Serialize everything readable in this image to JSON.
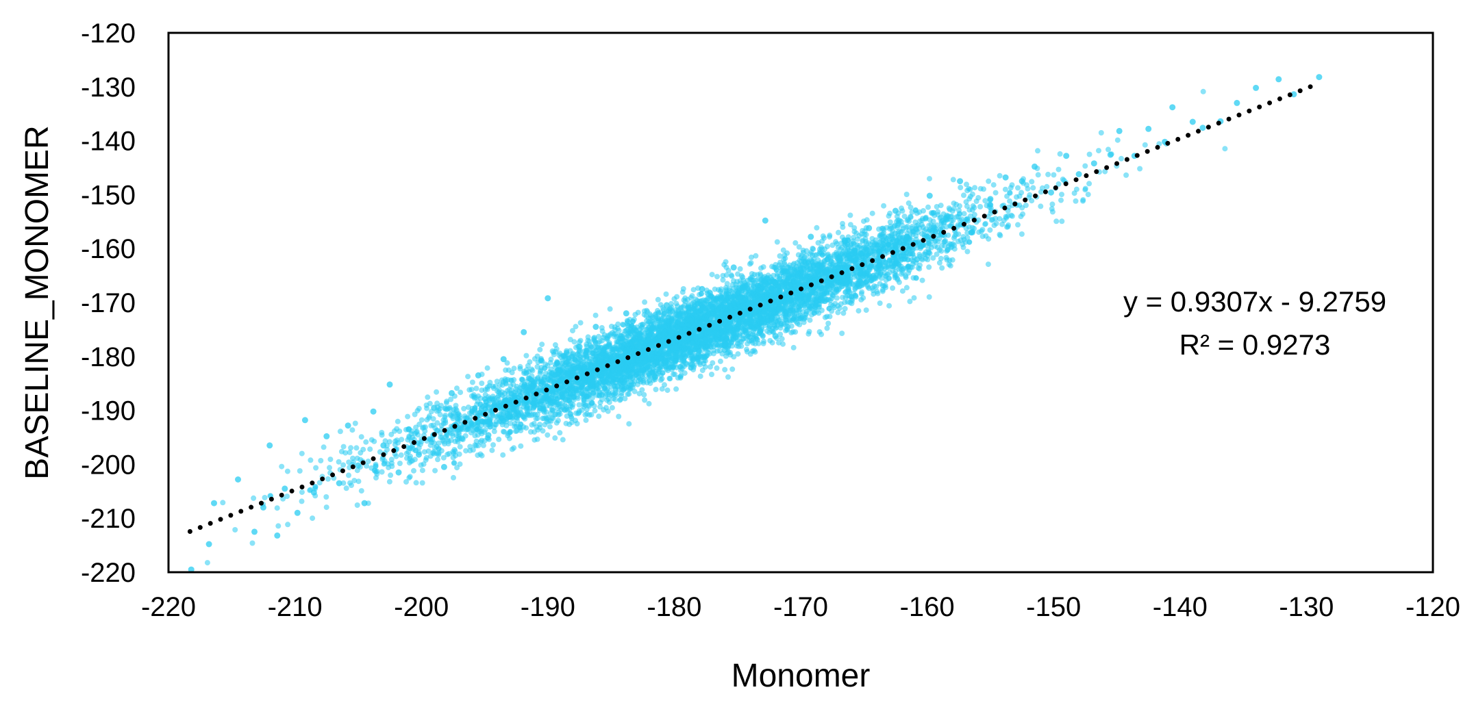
{
  "chart_data": {
    "type": "scatter",
    "xlabel": "Monomer",
    "ylabel": "BASELINE_MONOMER",
    "xlim": [
      -220,
      -120
    ],
    "ylim": [
      -220,
      -120
    ],
    "xticks": [
      "-220",
      "-210",
      "-200",
      "-190",
      "-180",
      "-170",
      "-160",
      "-150",
      "-140",
      "-130",
      "-120"
    ],
    "yticks": [
      "-120",
      "-130",
      "-140",
      "-150",
      "-160",
      "-170",
      "-180",
      "-190",
      "-200",
      "-210",
      "-220"
    ],
    "grid": false,
    "legend": "none",
    "series": [
      {
        "marker_color": "#29ccf2",
        "points_shown": "about 8000 points scattered tightly along the trendline, densest between x = -190 and x = -165",
        "points": [
          [
            -218.2,
            -219.5
          ],
          [
            -216.8,
            -214.8
          ],
          [
            -216.4,
            -207.2
          ],
          [
            -214.5,
            -202.8
          ],
          [
            -213.2,
            -212.5
          ],
          [
            -212.5,
            -208.0
          ],
          [
            -212.0,
            -196.5
          ],
          [
            -211.4,
            -213.2
          ],
          [
            -210.8,
            -204.5
          ],
          [
            -209.8,
            -209.0
          ],
          [
            -209.2,
            -191.8
          ],
          [
            -208.5,
            -205.2
          ],
          [
            -207.5,
            -194.8
          ],
          [
            -206.5,
            -203.5
          ],
          [
            -205.8,
            -192.8
          ],
          [
            -205.0,
            -200.2
          ],
          [
            -204.5,
            -207.2
          ],
          [
            -203.8,
            -190.2
          ],
          [
            -203.0,
            -196.5
          ],
          [
            -202.5,
            -185.2
          ],
          [
            -201.8,
            -201.5
          ],
          [
            -201.0,
            -193.5
          ],
          [
            -200.2,
            -198.2
          ],
          [
            -199.0,
            -189.5
          ],
          [
            -198.2,
            -200.5
          ],
          [
            -197.6,
            -186.8
          ],
          [
            -196.8,
            -195.2
          ],
          [
            -195.5,
            -183.5
          ],
          [
            -194.7,
            -194.6
          ],
          [
            -193.5,
            -180.5
          ],
          [
            -192.8,
            -191.2
          ],
          [
            -191.9,
            -175.5
          ],
          [
            -191.0,
            -186.8
          ],
          [
            -190.0,
            -169.2
          ],
          [
            -189.2,
            -182.5
          ],
          [
            -188.2,
            -186.0
          ],
          [
            -187.5,
            -178.2
          ],
          [
            -186.2,
            -174.5
          ],
          [
            -185.4,
            -181.8
          ],
          [
            -184.5,
            -185.5
          ],
          [
            -183.8,
            -172.0
          ],
          [
            -182.5,
            -177.5
          ],
          [
            -181.5,
            -183.8
          ],
          [
            -180.6,
            -170.5
          ],
          [
            -179.8,
            -175.8
          ],
          [
            -178.6,
            -181.5
          ],
          [
            -177.8,
            -167.5
          ],
          [
            -177.0,
            -174.2
          ],
          [
            -176.0,
            -178.8
          ],
          [
            -175.3,
            -163.5
          ],
          [
            -174.6,
            -167.2
          ],
          [
            -173.5,
            -172.5
          ],
          [
            -172.8,
            -154.8
          ],
          [
            -172.0,
            -176.2
          ],
          [
            -171.2,
            -164.2
          ],
          [
            -170.0,
            -170.5
          ],
          [
            -169.2,
            -157.8
          ],
          [
            -168.5,
            -166.0
          ],
          [
            -167.2,
            -165.5
          ],
          [
            -166.5,
            -158.5
          ],
          [
            -165.4,
            -163.6
          ],
          [
            -164.6,
            -156.2
          ],
          [
            -163.8,
            -160.5
          ],
          [
            -162.5,
            -153.0
          ],
          [
            -161.6,
            -157.8
          ],
          [
            -160.8,
            -162.0
          ],
          [
            -159.8,
            -150.2
          ],
          [
            -158.5,
            -154.5
          ],
          [
            -157.4,
            -147.5
          ],
          [
            -156.5,
            -157.0
          ],
          [
            -155.0,
            -150.8
          ],
          [
            -153.8,
            -146.8
          ],
          [
            -152.5,
            -147.5
          ],
          [
            -151.5,
            -144.8
          ],
          [
            -150.2,
            -149.6
          ],
          [
            -149.0,
            -142.8
          ],
          [
            -148.0,
            -146.2
          ],
          [
            -146.8,
            -144.2
          ],
          [
            -145.5,
            -142.6
          ],
          [
            -144.8,
            -138.2
          ],
          [
            -143.6,
            -142.8
          ],
          [
            -142.5,
            -137.8
          ],
          [
            -141.2,
            -140.2
          ],
          [
            -140.6,
            -133.8
          ],
          [
            -139.0,
            -136.5
          ],
          [
            -138.2,
            -137.6
          ],
          [
            -136.8,
            -136.4
          ],
          [
            -135.5,
            -133.0
          ],
          [
            -134.0,
            -130.2
          ],
          [
            -132.2,
            -128.6
          ],
          [
            -131.0,
            -131.4
          ],
          [
            -129.0,
            -128.2
          ]
        ]
      }
    ],
    "trendline": {
      "style": "dotted",
      "color": "#000000",
      "slope": 0.9307,
      "intercept": -9.2759,
      "x_range": [
        -218.3,
        -129.0
      ]
    },
    "annotations": [
      "y = 0.9307x - 9.2759",
      "R² = 0.9273"
    ]
  }
}
